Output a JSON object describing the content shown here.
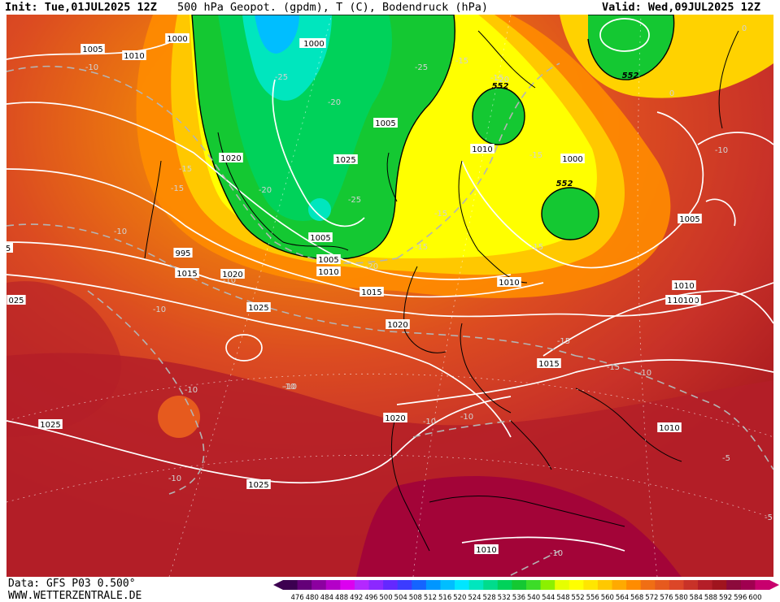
{
  "header": {
    "init": "Init: Tue,01JUL2025 12Z",
    "title": "500 hPa Geopot. (gpdm), T (C), Bodendruck (hPa)",
    "valid": "Valid: Wed,09JUL2025 12Z"
  },
  "footer": {
    "data_source": "Data: GFS P03 0.500°",
    "website": "WWW.WETTERZENTRALE.DE"
  },
  "legend": {
    "values": [
      "476",
      "480",
      "484",
      "488",
      "492",
      "496",
      "500",
      "504",
      "508",
      "512",
      "516",
      "520",
      "524",
      "528",
      "532",
      "536",
      "540",
      "544",
      "548",
      "552",
      "556",
      "560",
      "564",
      "568",
      "572",
      "576",
      "580",
      "584",
      "588",
      "592",
      "596",
      "600"
    ],
    "colors": [
      "#3c0050",
      "#640078",
      "#8c00a0",
      "#b400c8",
      "#dc00f0",
      "#b428ff",
      "#8c28ff",
      "#6428ff",
      "#3c3cff",
      "#1464ff",
      "#0096ff",
      "#00beff",
      "#00e6ff",
      "#00e6be",
      "#00dc8c",
      "#00d25a",
      "#14c832",
      "#3cdc28",
      "#8cf000",
      "#e6ff00",
      "#ffff00",
      "#ffe600",
      "#ffc800",
      "#ffaa00",
      "#ff8c00",
      "#f06e14",
      "#e65a1e",
      "#dc4628",
      "#c83228",
      "#b41e28",
      "#a0141e",
      "#8c0a3c",
      "#a00050",
      "#c8006e"
    ]
  },
  "map_labels": {
    "pressure": [
      "1000",
      "1005",
      "1010",
      "1015",
      "1020",
      "1025",
      "1005",
      "1000",
      "995",
      "1005",
      "1010",
      "1005",
      "1000",
      "1010",
      "1015",
      "1020",
      "1015",
      "1010",
      "1025",
      "1010",
      "1010",
      "1015",
      "1020",
      "1025",
      "1010",
      "1010",
      "1025",
      "1010",
      "1000",
      "1005",
      "1020",
      "1010",
      "5",
      "025"
    ],
    "temperature": [
      "-25",
      "-20",
      "-25",
      "-25",
      "-20",
      "-20",
      "-15",
      "-15",
      "-15",
      "-10",
      "-15",
      "-10",
      "-10",
      "-10",
      "-10",
      "-10",
      "-15",
      "-15",
      "-15",
      "-10",
      "-15",
      "-10",
      "-10",
      "-10",
      "-10",
      "-5",
      "-5",
      "-10",
      "0",
      "0",
      "-15",
      "-15",
      "-20",
      "-10"
    ],
    "geopotential": [
      "552",
      "552",
      "552"
    ]
  }
}
